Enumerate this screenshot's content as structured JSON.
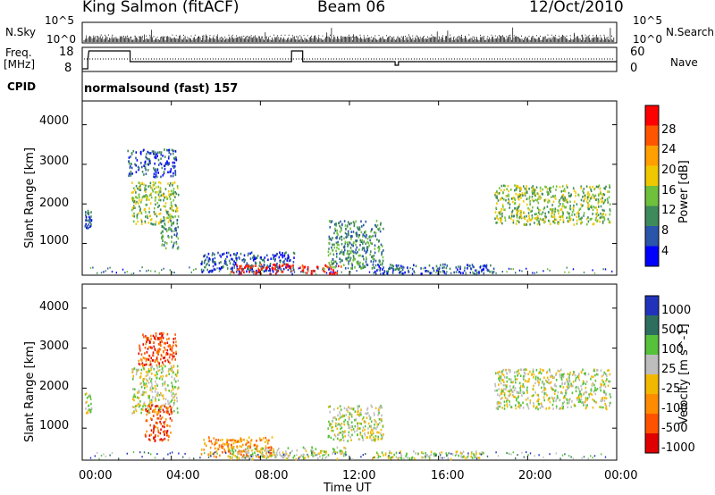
{
  "header": {
    "station": "King Salmon (fitACF)",
    "beam": "Beam 06",
    "date": "12/Oct/2010"
  },
  "aux": {
    "nsky_label": "N.Sky",
    "freq_label": "Freq.",
    "freq_unit": "[MHz]",
    "cpid_label": "CPID",
    "nsearch_label": "N.Search",
    "nave_label": "Nave",
    "left_ticks_top": [
      "10^5",
      "10^0"
    ],
    "right_ticks_top": [
      "10^5",
      "10^0"
    ],
    "freq_ticks": [
      "18",
      "8"
    ],
    "nave_ticks": [
      "60",
      "0"
    ],
    "cpid_text": "normalsound (fast) 157"
  },
  "colors": {
    "power": [
      "#0000ff",
      "#2a55aa",
      "#3f8a5a",
      "#6fc13c",
      "#f0c800",
      "#ff9f00",
      "#ff5500",
      "#ff0000"
    ],
    "velocity": [
      "#2233bb",
      "#2d6e5e",
      "#55c23a",
      "#bdbdbd",
      "#f2b800",
      "#ff8c00",
      "#ff5200",
      "#e00000"
    ]
  },
  "chart_data": [
    {
      "type": "heatmap",
      "quantity": "Power",
      "ylabel": "Slant Range [km]",
      "colorbar_label": "Power [dB]",
      "xlabel": "Time UT",
      "x_ticks": [
        "00:00",
        "04:00",
        "08:00",
        "12:00",
        "16:00",
        "20:00",
        "00:00"
      ],
      "y_ticks": [
        1000,
        2000,
        3000,
        4000
      ],
      "ylim": [
        200,
        4600
      ],
      "xlim_hours": [
        0,
        24
      ],
      "colorbar_ticks": [
        4,
        8,
        12,
        16,
        20,
        24,
        28
      ],
      "clim": [
        0,
        32
      ],
      "echo_regions": [
        {
          "t_start": 0.1,
          "t_end": 0.4,
          "r_start": 1400,
          "r_end": 1900,
          "level": 6
        },
        {
          "t_start": 2.2,
          "t_end": 4.3,
          "r_start": 1500,
          "r_end": 2600,
          "level": 14
        },
        {
          "t_start": 2.0,
          "t_end": 4.2,
          "r_start": 2700,
          "r_end": 3400,
          "level": 5
        },
        {
          "t_start": 3.5,
          "t_end": 4.3,
          "r_start": 900,
          "r_end": 1700,
          "level": 10
        },
        {
          "t_start": 5.3,
          "t_end": 9.5,
          "r_start": 300,
          "r_end": 800,
          "level": 6
        },
        {
          "t_start": 6.6,
          "t_end": 9.5,
          "r_start": 250,
          "r_end": 500,
          "level": 28
        },
        {
          "t_start": 9.7,
          "t_end": 11.6,
          "r_start": 250,
          "r_end": 500,
          "level": 28
        },
        {
          "t_start": 11.0,
          "t_end": 13.5,
          "r_start": 400,
          "r_end": 1600,
          "level": 10
        },
        {
          "t_start": 13.0,
          "t_end": 18.5,
          "r_start": 250,
          "r_end": 500,
          "level": 5
        },
        {
          "t_start": 18.5,
          "t_end": 23.7,
          "r_start": 1500,
          "r_end": 2500,
          "level": 12
        }
      ]
    },
    {
      "type": "heatmap",
      "quantity": "Velocity",
      "ylabel": "Slant Range [km]",
      "colorbar_label": "Velocity [m s^-1]",
      "xlabel": "Time UT",
      "x_ticks": [
        "00:00",
        "04:00",
        "08:00",
        "12:00",
        "16:00",
        "20:00",
        "00:00"
      ],
      "y_ticks": [
        1000,
        2000,
        3000,
        4000
      ],
      "ylim": [
        200,
        4600
      ],
      "xlim_hours": [
        0,
        24
      ],
      "colorbar_ticks": [
        "1000",
        "500",
        "100",
        "25",
        "-25",
        "-100",
        "-500",
        "-1000"
      ],
      "echo_regions": [
        {
          "t_start": 0.1,
          "t_end": 0.4,
          "r_start": 1400,
          "r_end": 1900,
          "level": 0
        },
        {
          "t_start": 2.2,
          "t_end": 4.3,
          "r_start": 1400,
          "r_end": 2600,
          "level": 0
        },
        {
          "t_start": 2.5,
          "t_end": 4.2,
          "r_start": 2600,
          "r_end": 3400,
          "level": -500
        },
        {
          "t_start": 2.8,
          "t_end": 4.0,
          "r_start": 700,
          "r_end": 1600,
          "level": -500
        },
        {
          "t_start": 5.3,
          "t_end": 8.5,
          "r_start": 300,
          "r_end": 800,
          "level": -150
        },
        {
          "t_start": 6.5,
          "t_end": 11.8,
          "r_start": 250,
          "r_end": 550,
          "level": 0
        },
        {
          "t_start": 11.0,
          "t_end": 13.5,
          "r_start": 700,
          "r_end": 1600,
          "level": 0
        },
        {
          "t_start": 13.0,
          "t_end": 18.0,
          "r_start": 250,
          "r_end": 450,
          "level": 0
        },
        {
          "t_start": 18.5,
          "t_end": 23.7,
          "r_start": 1500,
          "r_end": 2500,
          "level": 0
        }
      ]
    }
  ]
}
